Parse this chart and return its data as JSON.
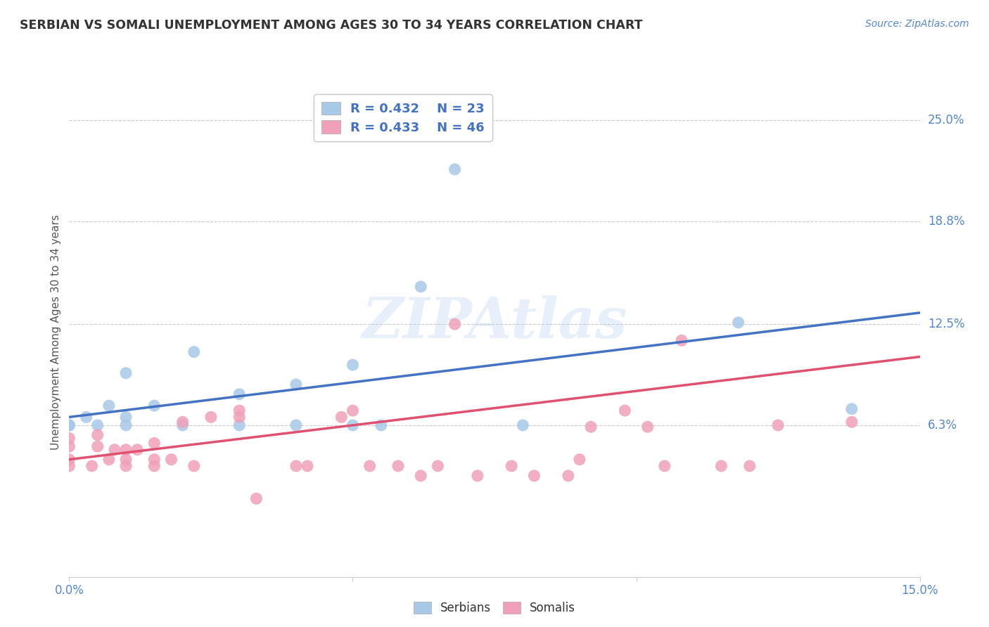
{
  "title": "SERBIAN VS SOMALI UNEMPLOYMENT AMONG AGES 30 TO 34 YEARS CORRELATION CHART",
  "source": "Source: ZipAtlas.com",
  "ylabel": "Unemployment Among Ages 30 to 34 years",
  "xlim": [
    0.0,
    0.15
  ],
  "ylim": [
    -0.03,
    0.27
  ],
  "xticks": [
    0.0,
    0.05,
    0.1,
    0.15
  ],
  "xtick_labels": [
    "0.0%",
    "",
    "",
    "15.0%"
  ],
  "ytick_vals_right": [
    0.25,
    0.188,
    0.125,
    0.063
  ],
  "ytick_labels_right": [
    "25.0%",
    "18.8%",
    "12.5%",
    "6.3%"
  ],
  "watermark": "ZIPAtlas",
  "serbian_R": "0.432",
  "serbian_N": "23",
  "somali_R": "0.433",
  "somali_N": "46",
  "serbian_color": "#a8c8e8",
  "somali_color": "#f0a0b8",
  "serbian_line_color": "#4472c4",
  "somali_line_color": "#e05070",
  "serbian_points": [
    [
      0.0,
      0.063
    ],
    [
      0.0,
      0.063
    ],
    [
      0.003,
      0.068
    ],
    [
      0.005,
      0.063
    ],
    [
      0.007,
      0.075
    ],
    [
      0.01,
      0.063
    ],
    [
      0.01,
      0.068
    ],
    [
      0.01,
      0.095
    ],
    [
      0.015,
      0.075
    ],
    [
      0.02,
      0.063
    ],
    [
      0.022,
      0.108
    ],
    [
      0.03,
      0.063
    ],
    [
      0.03,
      0.082
    ],
    [
      0.04,
      0.063
    ],
    [
      0.04,
      0.088
    ],
    [
      0.05,
      0.063
    ],
    [
      0.05,
      0.1
    ],
    [
      0.055,
      0.063
    ],
    [
      0.062,
      0.148
    ],
    [
      0.068,
      0.22
    ],
    [
      0.08,
      0.063
    ],
    [
      0.118,
      0.126
    ],
    [
      0.138,
      0.073
    ]
  ],
  "somali_points": [
    [
      0.0,
      0.038
    ],
    [
      0.0,
      0.042
    ],
    [
      0.0,
      0.05
    ],
    [
      0.0,
      0.055
    ],
    [
      0.004,
      0.038
    ],
    [
      0.005,
      0.05
    ],
    [
      0.005,
      0.057
    ],
    [
      0.007,
      0.042
    ],
    [
      0.008,
      0.048
    ],
    [
      0.01,
      0.038
    ],
    [
      0.01,
      0.042
    ],
    [
      0.01,
      0.048
    ],
    [
      0.012,
      0.048
    ],
    [
      0.015,
      0.038
    ],
    [
      0.015,
      0.042
    ],
    [
      0.015,
      0.052
    ],
    [
      0.018,
      0.042
    ],
    [
      0.02,
      0.065
    ],
    [
      0.022,
      0.038
    ],
    [
      0.025,
      0.068
    ],
    [
      0.03,
      0.068
    ],
    [
      0.03,
      0.072
    ],
    [
      0.033,
      0.018
    ],
    [
      0.04,
      0.038
    ],
    [
      0.042,
      0.038
    ],
    [
      0.048,
      0.068
    ],
    [
      0.05,
      0.072
    ],
    [
      0.053,
      0.038
    ],
    [
      0.058,
      0.038
    ],
    [
      0.062,
      0.032
    ],
    [
      0.065,
      0.038
    ],
    [
      0.068,
      0.125
    ],
    [
      0.072,
      0.032
    ],
    [
      0.078,
      0.038
    ],
    [
      0.082,
      0.032
    ],
    [
      0.088,
      0.032
    ],
    [
      0.09,
      0.042
    ],
    [
      0.092,
      0.062
    ],
    [
      0.098,
      0.072
    ],
    [
      0.102,
      0.062
    ],
    [
      0.105,
      0.038
    ],
    [
      0.108,
      0.115
    ],
    [
      0.115,
      0.038
    ],
    [
      0.12,
      0.038
    ],
    [
      0.125,
      0.063
    ],
    [
      0.138,
      0.065
    ]
  ],
  "serbian_line": {
    "x0": 0.0,
    "y0": 0.068,
    "x1": 0.15,
    "y1": 0.132
  },
  "somali_line": {
    "x0": 0.0,
    "y0": 0.042,
    "x1": 0.15,
    "y1": 0.105
  }
}
